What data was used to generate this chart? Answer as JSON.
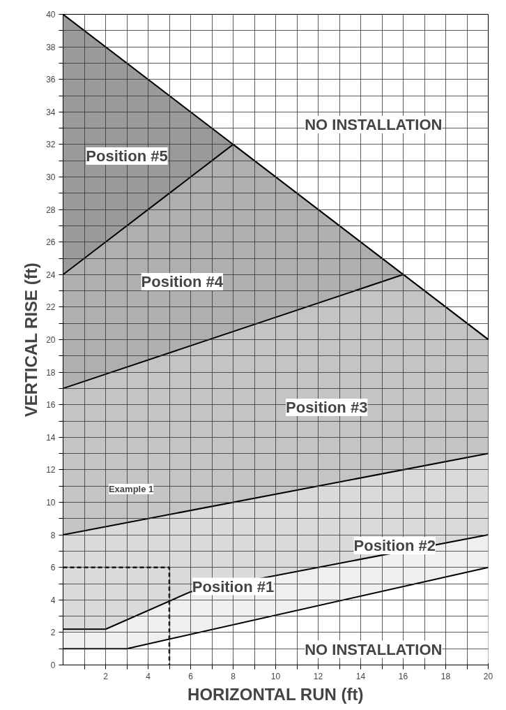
{
  "chart_data": {
    "type": "area",
    "xlabel": "HORIZONTAL RUN (ft)",
    "ylabel": "VERTICAL RISE (ft)",
    "xlim": [
      0,
      20
    ],
    "ylim": [
      0,
      40
    ],
    "xticks": [
      {
        "value": 1,
        "label": null
      },
      2,
      {
        "value": 3,
        "label": null
      },
      4,
      {
        "value": 5,
        "label": null
      },
      6,
      {
        "value": 7,
        "label": null
      },
      8,
      {
        "value": 9,
        "label": null
      },
      10,
      {
        "value": 11,
        "label": null
      },
      12,
      {
        "value": 13,
        "label": null
      },
      14,
      {
        "value": 15,
        "label": null
      },
      16,
      {
        "value": 17,
        "label": null
      },
      18,
      {
        "value": 19,
        "label": null
      },
      20
    ],
    "yticks": [
      0,
      {
        "value": 1,
        "label": null
      },
      2,
      {
        "value": 3,
        "label": null
      },
      4,
      {
        "value": 5,
        "label": null
      },
      6,
      {
        "value": 7,
        "label": null
      },
      8,
      {
        "value": 9,
        "label": null
      },
      10,
      {
        "value": 11,
        "label": null
      },
      12,
      {
        "value": 13,
        "label": null
      },
      14,
      {
        "value": 15,
        "label": null
      },
      16,
      {
        "value": 17,
        "label": null
      },
      18,
      {
        "value": 19,
        "label": null
      },
      20,
      {
        "value": 21,
        "label": null
      },
      22,
      {
        "value": 23,
        "label": null
      },
      24,
      {
        "value": 25,
        "label": null
      },
      26,
      {
        "value": 27,
        "label": null
      },
      28,
      {
        "value": 29,
        "label": null
      },
      30,
      {
        "value": 31,
        "label": null
      },
      32,
      {
        "value": 33,
        "label": null
      },
      34,
      {
        "value": 35,
        "label": null
      },
      36,
      {
        "value": 37,
        "label": null
      },
      38,
      {
        "value": 39,
        "label": null
      },
      40
    ],
    "grid": true,
    "series": [
      {
        "color": "#9a9a9c",
        "x": [
          0,
          20
        ],
        "values": [
          40,
          20
        ]
      },
      {
        "color": "#afafb1",
        "x": [
          0,
          8,
          20
        ],
        "values": [
          24,
          32,
          20
        ]
      },
      {
        "color": "#c4c4c6",
        "x": [
          0,
          16,
          20
        ],
        "values": [
          17,
          24,
          20
        ]
      },
      {
        "color": "#dadadb",
        "x": [
          0,
          20
        ],
        "values": [
          8,
          13
        ]
      },
      {
        "color": "#efefef",
        "x": [
          0,
          2,
          6,
          20
        ],
        "values": [
          2.2,
          2.2,
          4.5,
          8
        ]
      },
      {
        "color": "#ffffff",
        "x": [
          0,
          3,
          20
        ],
        "values": [
          1,
          1,
          6
        ]
      },
      {
        "type": "line",
        "color": "#000000",
        "line_style": "dashed",
        "x": [
          0,
          5,
          5
        ],
        "values": [
          6,
          6,
          0
        ]
      }
    ],
    "annotations": [
      "NO INSTALLATION",
      "Position #5",
      "Position #4",
      "Position #3",
      "Position #2",
      "Position #1",
      "NO INSTALLATION",
      "Example 1"
    ]
  }
}
